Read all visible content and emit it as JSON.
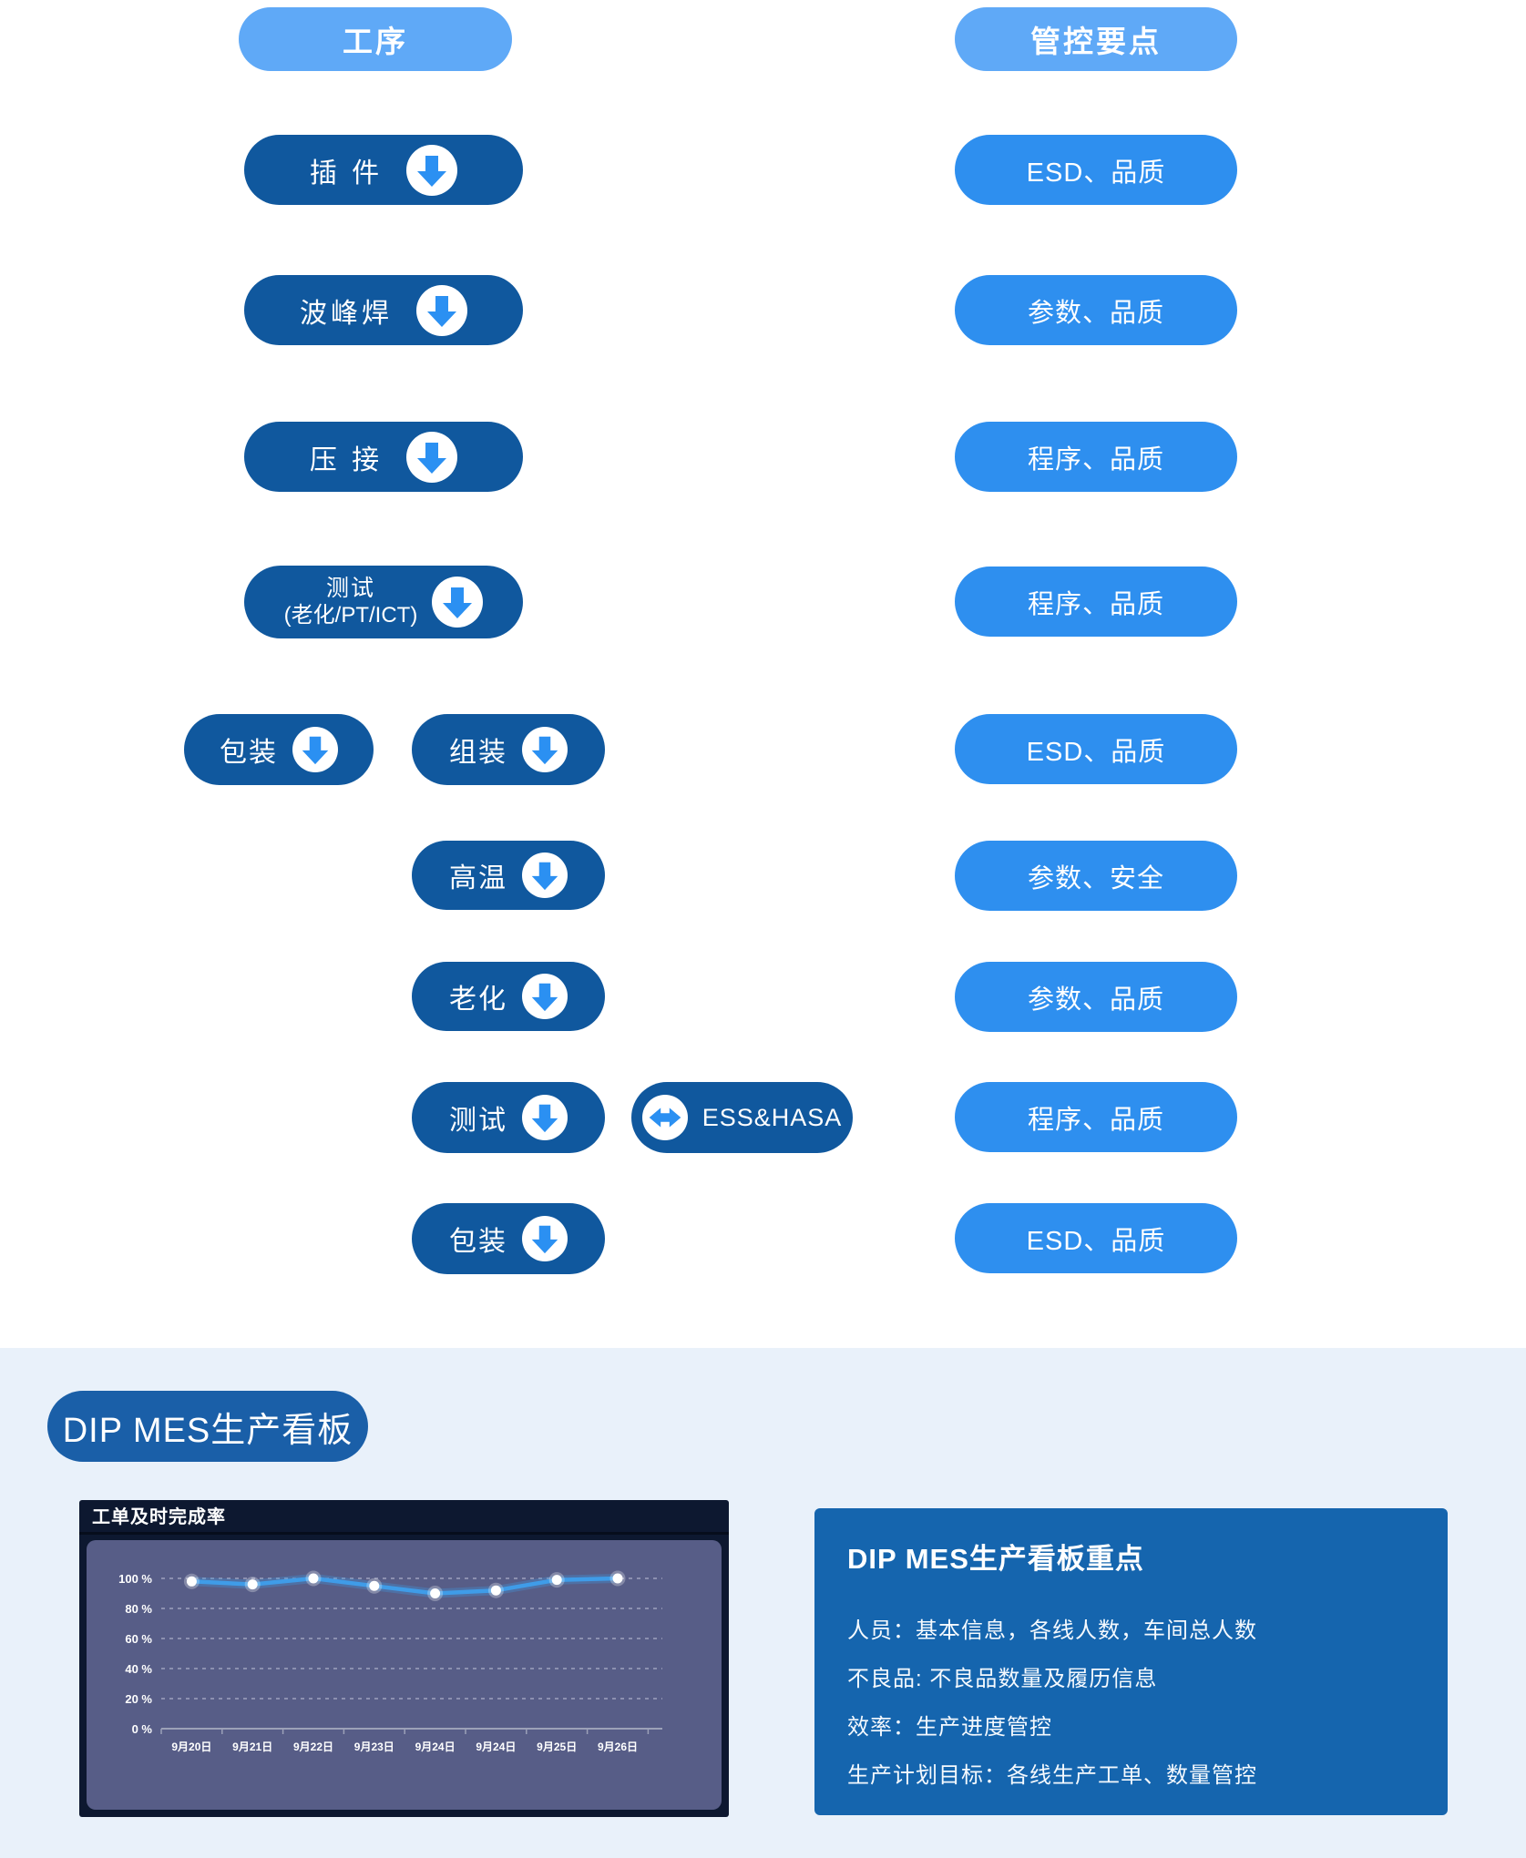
{
  "flow": {
    "left_header": "工序",
    "right_header": "管控要点",
    "rows": [
      {
        "process": "插 件",
        "control": "ESD、品质"
      },
      {
        "process": "波峰焊",
        "control": "参数、品质"
      },
      {
        "process": "压 接",
        "control": "程序、品质"
      },
      {
        "process": "测试",
        "sub": "(老化/PT/ICT)",
        "control": "程序、品质"
      },
      {
        "side": "包装",
        "process": "组装",
        "control": "ESD、品质"
      },
      {
        "process": "高温",
        "control": "参数、安全"
      },
      {
        "process": "老化",
        "control": "参数、品质"
      },
      {
        "process": "测试",
        "tag": "ESS&HASA",
        "control": "程序、品质"
      },
      {
        "process": "包装",
        "control": "ESD、品质"
      }
    ]
  },
  "dashboard": {
    "badge": "DIP MES生产看板",
    "panel": {
      "title": "DIP MES生产看板重点",
      "lines": [
        "人员：基本信息，各线人数，车间总人数",
        "不良品: 不良品数量及履历信息",
        "效率：生产进度管控",
        "生产计划目标：各线生产工单、数量管控"
      ]
    }
  },
  "chart_data": {
    "type": "line",
    "title": "工单及时完成率",
    "categories": [
      "9月20日",
      "9月21日",
      "9月22日",
      "9月23日",
      "9月24日",
      "9月24日",
      "9月25日",
      "9月26日"
    ],
    "values": [
      98,
      96,
      100,
      95,
      90,
      92,
      99,
      100
    ],
    "y_ticks": [
      "100 %",
      "80 %",
      "60 %",
      "40 %",
      "20 %",
      "0 %"
    ],
    "ylim": [
      0,
      100
    ],
    "xlabel": "",
    "ylabel": "",
    "grid": "horizontal-dashed",
    "legend": "none",
    "line_color": "#3F9CE8",
    "point_color": "#FFFFFF",
    "plot_bg": "#575D87",
    "panel_bg": "#0D1830"
  },
  "colors": {
    "header_pill": "#5FA9F7",
    "process_pill": "#10589E",
    "control_pill": "#2E8FEF",
    "arrow_blue": "#2B90F2",
    "badge_blue": "#1A5FA8",
    "info_panel_blue": "#1565AE",
    "section_bg": "#E9F1FA"
  }
}
